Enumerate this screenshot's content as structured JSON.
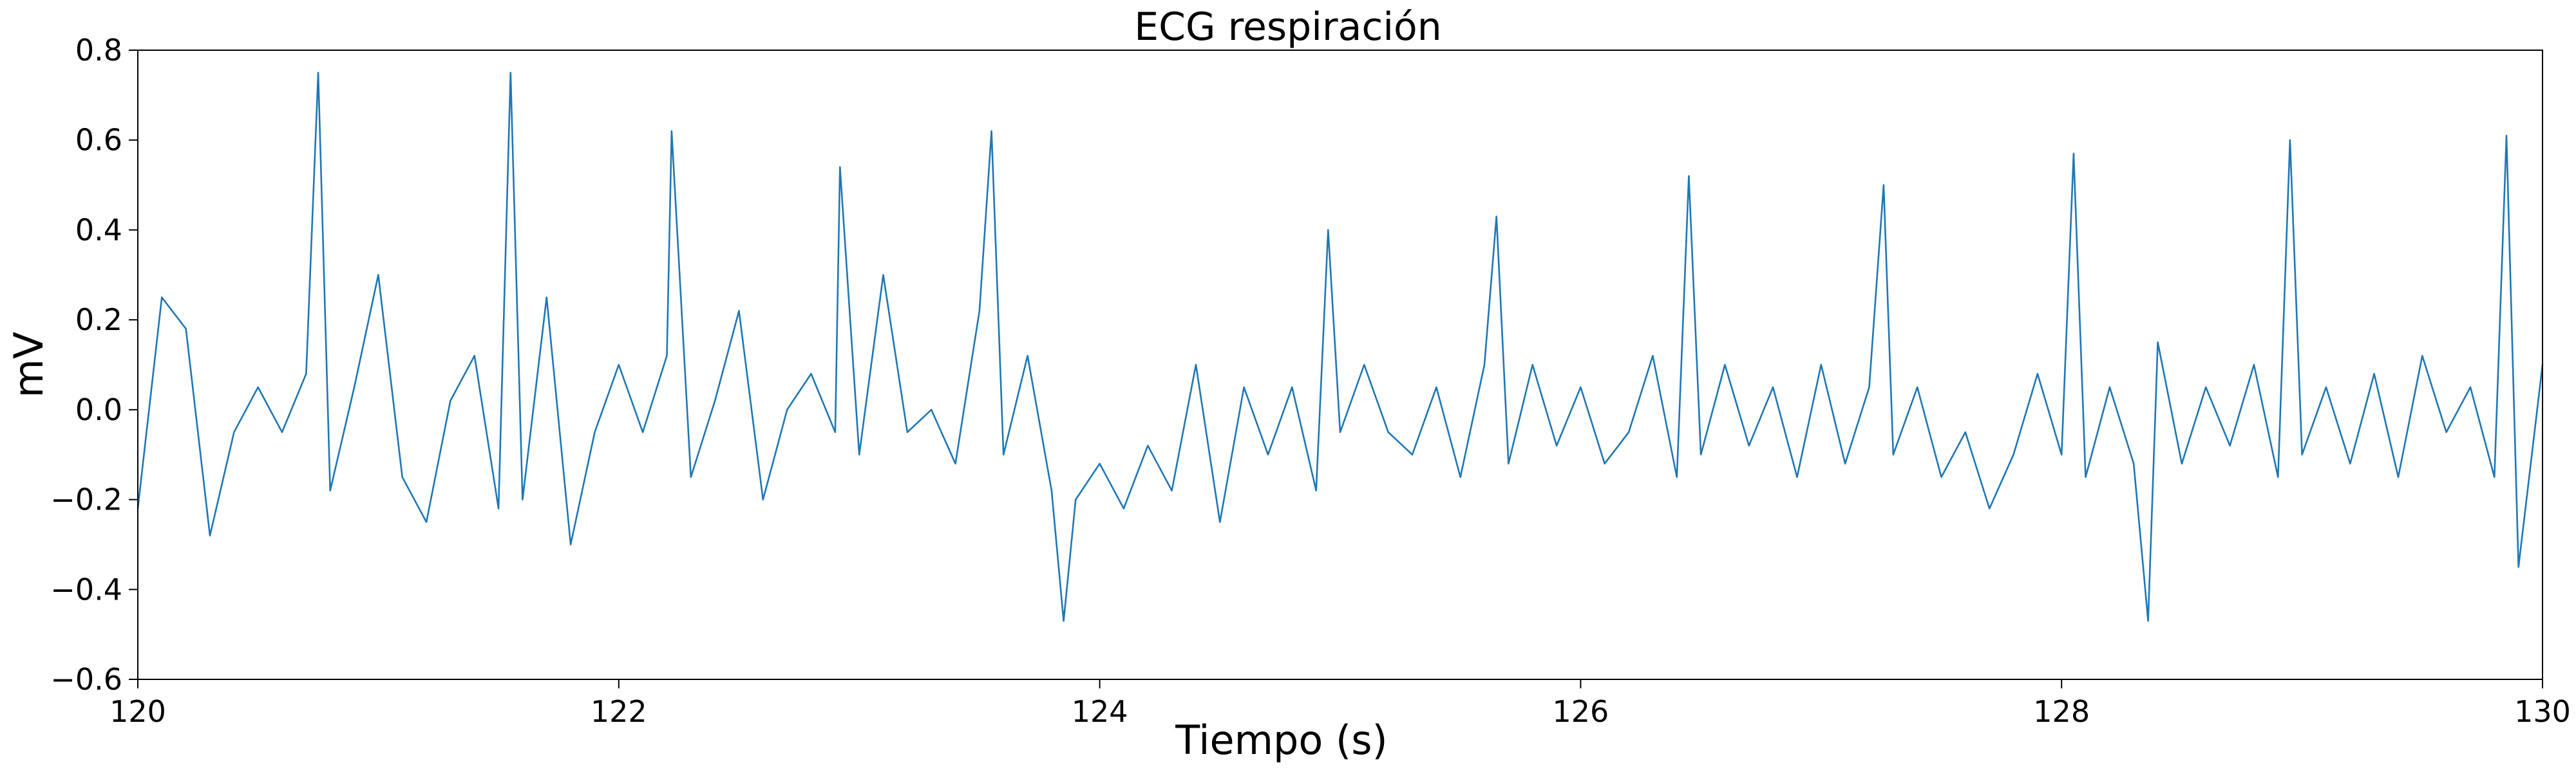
{
  "chart_data": {
    "type": "line",
    "title": "ECG respiración",
    "xlabel": "Tiempo (s)",
    "ylabel": "mV",
    "xlim": [
      120,
      130
    ],
    "ylim": [
      -0.6,
      0.8
    ],
    "xticks": [
      120,
      122,
      124,
      126,
      128,
      130
    ],
    "xtick_labels": [
      "120",
      "122",
      "124",
      "126",
      "128",
      "130"
    ],
    "yticks": [
      -0.6,
      -0.4,
      -0.2,
      0.0,
      0.2,
      0.4,
      0.6,
      0.8
    ],
    "ytick_labels": [
      "−0.6",
      "−0.4",
      "−0.2",
      "0.0",
      "0.2",
      "0.4",
      "0.6",
      "0.8"
    ],
    "grid": false,
    "line_color": "#1f77b4",
    "series": [
      {
        "x": [
          120.0,
          120.1,
          120.2,
          120.3,
          120.4,
          120.5,
          120.6,
          120.7,
          120.75,
          120.8,
          120.9,
          121.0,
          121.1,
          121.2,
          121.3,
          121.4,
          121.5,
          121.55,
          121.6,
          121.7,
          121.8,
          121.9,
          122.0,
          122.1,
          122.2,
          122.22,
          122.3,
          122.4,
          122.5,
          122.6,
          122.7,
          122.8,
          122.9,
          122.92,
          123.0,
          123.1,
          123.2,
          123.3,
          123.4,
          123.5,
          123.55,
          123.6,
          123.7,
          123.8,
          123.85,
          123.9,
          124.0,
          124.1,
          124.2,
          124.3,
          124.4,
          124.5,
          124.6,
          124.7,
          124.8,
          124.9,
          124.95,
          125.0,
          125.1,
          125.2,
          125.3,
          125.4,
          125.5,
          125.6,
          125.65,
          125.7,
          125.8,
          125.9,
          126.0,
          126.1,
          126.2,
          126.3,
          126.4,
          126.45,
          126.5,
          126.6,
          126.7,
          126.8,
          126.9,
          127.0,
          127.1,
          127.2,
          127.26,
          127.3,
          127.4,
          127.5,
          127.6,
          127.7,
          127.8,
          127.9,
          128.0,
          128.05,
          128.1,
          128.2,
          128.3,
          128.36,
          128.4,
          128.5,
          128.6,
          128.7,
          128.8,
          128.9,
          128.95,
          129.0,
          129.1,
          129.2,
          129.3,
          129.4,
          129.5,
          129.6,
          129.7,
          129.8,
          129.85,
          129.9,
          130.0
        ],
        "y": [
          -0.22,
          0.25,
          0.18,
          -0.28,
          -0.05,
          0.05,
          -0.05,
          0.08,
          0.75,
          -0.18,
          0.05,
          0.3,
          -0.15,
          -0.25,
          0.02,
          0.12,
          -0.22,
          0.75,
          -0.2,
          0.25,
          -0.3,
          -0.05,
          0.1,
          -0.05,
          0.12,
          0.62,
          -0.15,
          0.02,
          0.22,
          -0.2,
          0.0,
          0.08,
          -0.05,
          0.54,
          -0.1,
          0.3,
          -0.05,
          0.0,
          -0.12,
          0.22,
          0.62,
          -0.1,
          0.12,
          -0.18,
          -0.47,
          -0.2,
          -0.12,
          -0.22,
          -0.08,
          -0.18,
          0.1,
          -0.25,
          0.05,
          -0.1,
          0.05,
          -0.18,
          0.4,
          -0.05,
          0.1,
          -0.05,
          -0.1,
          0.05,
          -0.15,
          0.1,
          0.43,
          -0.12,
          0.1,
          -0.08,
          0.05,
          -0.12,
          -0.05,
          0.12,
          -0.15,
          0.52,
          -0.1,
          0.1,
          -0.08,
          0.05,
          -0.15,
          0.1,
          -0.12,
          0.05,
          0.5,
          -0.1,
          0.05,
          -0.15,
          -0.05,
          -0.22,
          -0.1,
          0.08,
          -0.1,
          0.57,
          -0.15,
          0.05,
          -0.12,
          -0.47,
          0.15,
          -0.12,
          0.05,
          -0.08,
          0.1,
          -0.15,
          0.6,
          -0.1,
          0.05,
          -0.12,
          0.08,
          -0.15,
          0.12,
          -0.05,
          0.05,
          -0.15,
          0.61,
          -0.35,
          0.1
        ]
      }
    ]
  }
}
